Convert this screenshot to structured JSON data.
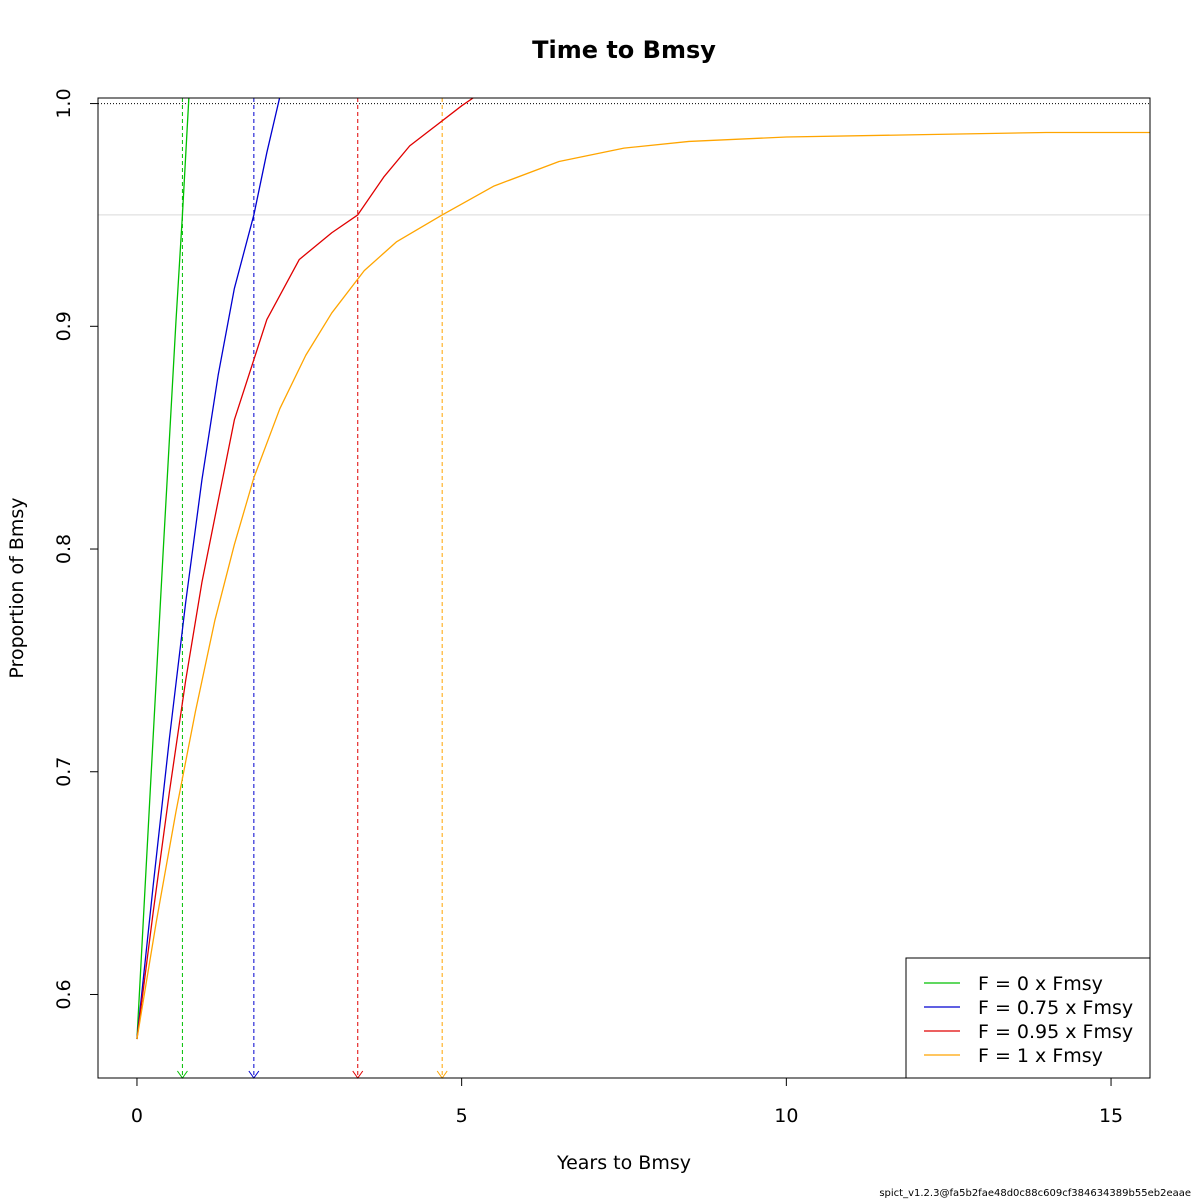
{
  "chart_data": {
    "type": "line",
    "title": "Time to Bmsy",
    "xlabel": "Years to Bmsy",
    "ylabel": "Proportion of Bmsy",
    "xlim": [
      -0.6,
      15.6
    ],
    "ylim": [
      0.5625,
      1.0025
    ],
    "x_ticks": [
      0,
      5,
      10,
      15
    ],
    "x_tick_labels": [
      "0",
      "5",
      "10",
      "15"
    ],
    "y_ticks": [
      0.6,
      0.7,
      0.8,
      0.9,
      1.0
    ],
    "y_tick_labels": [
      "0.6",
      "0.7",
      "0.8",
      "0.9",
      "1.0"
    ],
    "grid": false,
    "reference_lines": [
      {
        "y": 1.0,
        "color": "#000000",
        "style": "dotted"
      },
      {
        "y": 0.95,
        "color": "#d9d9d9",
        "style": "solid"
      }
    ],
    "legend_position": "bottom-right",
    "series": [
      {
        "name": "F = 0 x Fmsy",
        "color": "#00c000",
        "time_to_95": 0.7,
        "x": [
          0,
          0.2,
          0.4,
          0.6,
          0.7,
          0.8
        ],
        "y": [
          0.58,
          0.689,
          0.797,
          0.902,
          0.95,
          1.003
        ]
      },
      {
        "name": "F = 0.75 x Fmsy",
        "color": "#0000d0",
        "time_to_95": 1.8,
        "x": [
          0,
          0.25,
          0.5,
          0.75,
          1.0,
          1.25,
          1.5,
          1.8,
          2.0,
          2.2
        ],
        "y": [
          0.58,
          0.649,
          0.715,
          0.776,
          0.831,
          0.878,
          0.917,
          0.95,
          0.978,
          1.003
        ]
      },
      {
        "name": "F = 0.95 x Fmsy",
        "color": "#e00000",
        "time_to_95": 3.4,
        "x": [
          0,
          0.25,
          0.5,
          0.75,
          1.0,
          1.5,
          2.0,
          2.5,
          3.0,
          3.4,
          3.8,
          4.2,
          4.6,
          5.0,
          5.2
        ],
        "y": [
          0.58,
          0.637,
          0.691,
          0.741,
          0.785,
          0.858,
          0.903,
          0.93,
          0.942,
          0.95,
          0.967,
          0.981,
          0.99,
          0.999,
          1.003
        ]
      },
      {
        "name": "F = 1 x Fmsy",
        "color": "#ffa500",
        "time_to_95": 4.7,
        "x": [
          0,
          0.3,
          0.6,
          0.9,
          1.2,
          1.5,
          1.8,
          2.2,
          2.6,
          3.0,
          3.5,
          4.0,
          4.7,
          5.5,
          6.5,
          7.5,
          8.5,
          10,
          12,
          14,
          15.6
        ],
        "y": [
          0.58,
          0.633,
          0.682,
          0.727,
          0.768,
          0.802,
          0.832,
          0.863,
          0.887,
          0.906,
          0.925,
          0.938,
          0.95,
          0.963,
          0.974,
          0.98,
          0.983,
          0.985,
          0.986,
          0.987,
          0.987
        ]
      }
    ]
  },
  "footer_text": "spict_v1.2.3@fa5b2fae48d0c88c609cf384634389b55eb2eaae"
}
